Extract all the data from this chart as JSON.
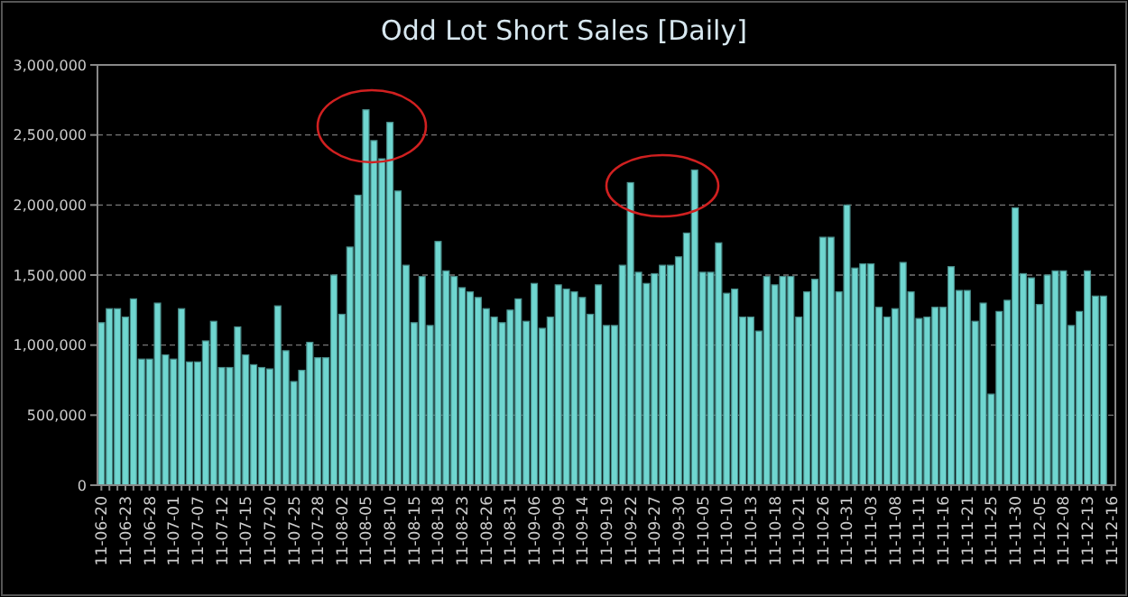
{
  "chart_data": {
    "type": "bar",
    "title": "Odd Lot Short Sales [Daily]",
    "categories": [
      "11-06-20",
      null,
      null,
      "11-06-23",
      null,
      null,
      "11-06-28",
      null,
      null,
      "11-07-01",
      null,
      null,
      "11-07-07",
      null,
      null,
      "11-07-12",
      null,
      null,
      "11-07-15",
      null,
      null,
      "11-07-20",
      null,
      null,
      "11-07-25",
      null,
      null,
      "11-07-28",
      null,
      null,
      "11-08-02",
      null,
      null,
      "11-08-05",
      null,
      null,
      "11-08-10",
      null,
      null,
      "11-08-15",
      null,
      null,
      "11-08-18",
      null,
      null,
      "11-08-23",
      null,
      null,
      "11-08-26",
      null,
      null,
      "11-08-31",
      null,
      null,
      "11-09-06",
      null,
      null,
      "11-09-09",
      null,
      null,
      "11-09-14",
      null,
      null,
      "11-09-19",
      null,
      null,
      "11-09-22",
      null,
      null,
      "11-09-27",
      null,
      null,
      "11-09-30",
      null,
      null,
      "11-10-05",
      null,
      null,
      "11-10-10",
      null,
      null,
      "11-10-13",
      null,
      null,
      "11-10-18",
      null,
      null,
      "11-10-21",
      null,
      null,
      "11-10-26",
      null,
      null,
      "11-10-31",
      null,
      null,
      "11-11-03",
      null,
      null,
      "11-11-08",
      null,
      null,
      "11-11-11",
      null,
      null,
      "11-11-16",
      null,
      null,
      "11-11-21",
      null,
      null,
      "11-11-25",
      null,
      null,
      "11-11-30",
      null,
      null,
      "11-12-05",
      null,
      null,
      "11-12-08",
      null,
      null,
      "11-12-13",
      null,
      null,
      "11-12-16"
    ],
    "values": [
      1160000,
      1260000,
      1260000,
      1200000,
      1330000,
      900000,
      900000,
      1300000,
      930000,
      900000,
      1260000,
      880000,
      880000,
      1030000,
      1170000,
      840000,
      840000,
      1130000,
      930000,
      860000,
      840000,
      830000,
      1280000,
      960000,
      740000,
      820000,
      1020000,
      910000,
      910000,
      1500000,
      1220000,
      1700000,
      2070000,
      2680000,
      2460000,
      2330000,
      2590000,
      2100000,
      1570000,
      1160000,
      1490000,
      1140000,
      1740000,
      1530000,
      1490000,
      1410000,
      1380000,
      1340000,
      1260000,
      1200000,
      1160000,
      1250000,
      1330000,
      1170000,
      1440000,
      1120000,
      1200000,
      1430000,
      1400000,
      1380000,
      1340000,
      1220000,
      1430000,
      1140000,
      1140000,
      1570000,
      2160000,
      1520000,
      1440000,
      1510000,
      1570000,
      1570000,
      1630000,
      1800000,
      2250000,
      1520000,
      1520000,
      1730000,
      1370000,
      1400000,
      1200000,
      1200000,
      1100000,
      1490000,
      1430000,
      1490000,
      1490000,
      1200000,
      1380000,
      1470000,
      1770000,
      1770000,
      1380000,
      2000000,
      1550000,
      1580000,
      1580000,
      1270000,
      1200000,
      1260000,
      1590000,
      1380000,
      1190000,
      1200000,
      1270000,
      1270000,
      1560000,
      1390000,
      1390000,
      1170000,
      1300000,
      650000,
      1240000,
      1320000,
      1980000,
      1510000,
      1480000,
      1290000,
      1500000,
      1530000,
      1530000,
      1140000,
      1240000,
      1530000,
      1350000,
      1350000,
      null
    ],
    "color": "#6fd6d0",
    "ylim": [
      0,
      3000000
    ],
    "yticks": [
      0,
      {
        "value": 500000,
        "label": "500,000"
      },
      {
        "value": 1000000,
        "label": "1,000,000"
      },
      {
        "value": 1500000,
        "label": "1,500,000"
      },
      {
        "value": 2000000,
        "label": "2,000,000"
      },
      {
        "value": 2500000,
        "label": "2,500,000"
      },
      {
        "value": 3000000,
        "label": "3,000,000"
      }
    ],
    "grid": "y"
  }
}
